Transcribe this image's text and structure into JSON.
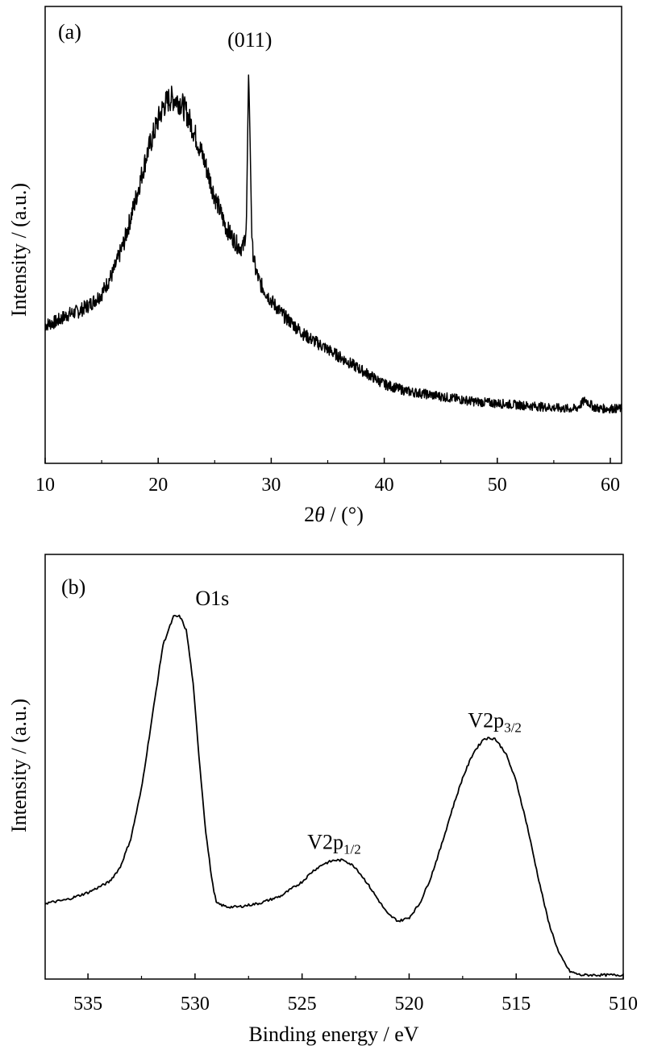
{
  "chart_data": [
    {
      "panel": "(a)",
      "type": "line",
      "xlabel_main": "2",
      "xlabel_var": "θ",
      "xlabel_rest": " / (°)",
      "ylabel": "Intensity / (a.u.)",
      "xlim": [
        10,
        61
      ],
      "x_ticks": [
        10,
        20,
        30,
        40,
        50,
        60
      ],
      "y_ticks_labeled": false,
      "noisy": true,
      "series": [
        {
          "x": [
            10,
            11,
            12,
            13,
            14,
            15,
            16,
            17,
            18,
            19,
            20,
            20.5,
            21,
            21.5,
            22,
            22.5,
            23,
            24,
            25,
            26,
            27,
            27.5,
            27.8,
            28.0,
            28.1,
            28.3,
            28.6,
            29,
            30,
            31,
            32,
            33,
            34,
            35,
            36,
            38,
            40,
            42,
            44,
            46,
            48,
            50,
            52,
            54,
            56,
            57,
            57.8,
            58.5,
            59,
            61
          ],
          "y": [
            0.27,
            0.28,
            0.3,
            0.31,
            0.33,
            0.36,
            0.42,
            0.51,
            0.63,
            0.76,
            0.86,
            0.9,
            0.92,
            0.92,
            0.91,
            0.88,
            0.84,
            0.75,
            0.64,
            0.55,
            0.5,
            0.49,
            0.55,
            1.0,
            0.85,
            0.5,
            0.43,
            0.39,
            0.34,
            0.3,
            0.27,
            0.24,
            0.22,
            0.2,
            0.18,
            0.14,
            0.1,
            0.08,
            0.07,
            0.06,
            0.05,
            0.045,
            0.04,
            0.035,
            0.03,
            0.03,
            0.055,
            0.035,
            0.03,
            0.03
          ]
        }
      ],
      "annotations": [
        {
          "text": "(011)",
          "x": 28.1
        }
      ]
    },
    {
      "panel": "(b)",
      "type": "line",
      "xlabel": "Binding energy / eV",
      "ylabel": "Intensity / (a.u.)",
      "xlim": [
        537,
        510
      ],
      "x_ticks": [
        535,
        530,
        525,
        520,
        515,
        510
      ],
      "x_reversed": true,
      "y_ticks_labeled": false,
      "noisy": false,
      "series": [
        {
          "x": [
            537,
            536,
            535,
            534,
            533.5,
            533,
            532.5,
            532,
            531.5,
            531,
            530.7,
            530.4,
            530.1,
            529.8,
            529.5,
            529.2,
            529,
            528.5,
            528,
            527,
            526,
            525,
            524.5,
            524,
            523.5,
            523,
            522.5,
            522,
            521,
            520.5,
            520,
            519.5,
            519,
            518.5,
            518,
            517.5,
            517,
            516.5,
            516,
            515.5,
            515,
            514.5,
            514,
            513.5,
            513,
            512.5,
            512,
            511,
            510
          ],
          "y": [
            0.2,
            0.21,
            0.23,
            0.26,
            0.3,
            0.38,
            0.52,
            0.72,
            0.92,
            1.0,
            1.0,
            0.96,
            0.82,
            0.6,
            0.4,
            0.26,
            0.2,
            0.19,
            0.19,
            0.2,
            0.22,
            0.26,
            0.29,
            0.31,
            0.32,
            0.32,
            0.3,
            0.26,
            0.17,
            0.15,
            0.16,
            0.2,
            0.27,
            0.36,
            0.46,
            0.55,
            0.62,
            0.66,
            0.66,
            0.62,
            0.54,
            0.42,
            0.28,
            0.15,
            0.06,
            0.01,
            0.0,
            0.0,
            0.0
          ]
        }
      ],
      "annotations": [
        {
          "base": "O1s",
          "sub": "",
          "x": 530.7
        },
        {
          "base": "V2p",
          "sub": "1/2",
          "x": 523.5
        },
        {
          "base": "V2p",
          "sub": "3/2",
          "x": 516.0
        }
      ]
    }
  ]
}
